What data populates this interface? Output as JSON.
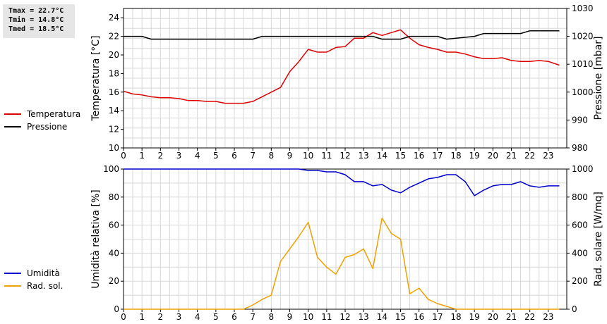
{
  "stats": {
    "tmax": "Tmax = 22.7°C",
    "tmin": "Tmin = 14.8°C",
    "tmed": "Tmed = 18.5°C"
  },
  "legend_top": [
    {
      "label": "Temperatura",
      "color": "#dd0000"
    },
    {
      "label": "Pressione",
      "color": "#000000"
    }
  ],
  "legend_bottom": [
    {
      "label": "Umidità",
      "color": "#0000cc"
    },
    {
      "label": "Rad. sol.",
      "color": "#f0a000"
    }
  ],
  "chart_data": [
    {
      "type": "line",
      "x_ticks": [
        "0",
        "1",
        "2",
        "3",
        "4",
        "5",
        "6",
        "7",
        "8",
        "9",
        "10",
        "11",
        "12",
        "13",
        "14",
        "15",
        "16",
        "17",
        "18",
        "19",
        "20",
        "21",
        "22",
        "23"
      ],
      "xlim": [
        0,
        24
      ],
      "ylabel": "Temperatura [°C]",
      "ylim": [
        10,
        25
      ],
      "y_ticks": [
        10,
        12,
        14,
        16,
        18,
        20,
        22,
        24
      ],
      "y2label": "Pressione [mbar]",
      "y2lim": [
        980,
        1030
      ],
      "y2_ticks": [
        980,
        990,
        1000,
        1010,
        1020,
        1030
      ],
      "grid": true,
      "legend": "left",
      "series": [
        {
          "name": "Temperatura",
          "axis": "left",
          "color": "#dd0000",
          "x": [
            0,
            0.5,
            1,
            1.5,
            2,
            2.5,
            3,
            3.5,
            4,
            4.5,
            5,
            5.5,
            6,
            6.5,
            7,
            7.5,
            8,
            8.5,
            9,
            9.5,
            10,
            10.5,
            11,
            11.5,
            12,
            12.5,
            13,
            13.5,
            14,
            14.5,
            15,
            15.5,
            16,
            16.5,
            17,
            17.5,
            18,
            18.5,
            19,
            19.5,
            20,
            20.5,
            21,
            21.5,
            22,
            22.5,
            23,
            23.6
          ],
          "y": [
            16.1,
            15.8,
            15.7,
            15.5,
            15.4,
            15.4,
            15.3,
            15.1,
            15.1,
            15.0,
            15.0,
            14.8,
            14.8,
            14.8,
            15.0,
            15.5,
            16.0,
            16.5,
            18.2,
            19.3,
            20.6,
            20.3,
            20.3,
            20.8,
            20.9,
            21.8,
            21.8,
            22.4,
            22.1,
            22.4,
            22.7,
            21.8,
            21.1,
            20.8,
            20.6,
            20.3,
            20.3,
            20.1,
            19.8,
            19.6,
            19.6,
            19.7,
            19.4,
            19.3,
            19.3,
            19.4,
            19.3,
            18.9
          ]
        },
        {
          "name": "Pressione",
          "axis": "right",
          "color": "#000000",
          "x": [
            0,
            1,
            1.5,
            7,
            7.5,
            13,
            13.5,
            14,
            15,
            15.5,
            17,
            17.5,
            19,
            19.5,
            21.5,
            22,
            23.6
          ],
          "y": [
            1020,
            1020,
            1019,
            1019,
            1020,
            1020,
            1020,
            1019,
            1019,
            1020,
            1020,
            1019,
            1020,
            1021,
            1021,
            1022,
            1022
          ]
        }
      ]
    },
    {
      "type": "line",
      "x_ticks": [
        "0",
        "1",
        "2",
        "3",
        "4",
        "5",
        "6",
        "7",
        "8",
        "9",
        "10",
        "11",
        "12",
        "13",
        "14",
        "15",
        "16",
        "17",
        "18",
        "19",
        "20",
        "21",
        "22",
        "23"
      ],
      "xlim": [
        0,
        24
      ],
      "ylabel": "Umidità relativa [%]",
      "ylim": [
        0,
        100
      ],
      "y_ticks": [
        0,
        20,
        40,
        60,
        80,
        100
      ],
      "y2label": "Rad. solare [W/mq]",
      "y2lim": [
        0,
        1000
      ],
      "y2_ticks": [
        0,
        200,
        400,
        600,
        800,
        1000
      ],
      "grid": true,
      "legend": "left",
      "series": [
        {
          "name": "Umidità",
          "axis": "left",
          "color": "#0000cc",
          "x": [
            0,
            9.5,
            10,
            10.5,
            11,
            11.5,
            12,
            12.5,
            13,
            13.5,
            14,
            14.5,
            15,
            15.5,
            16,
            16.5,
            17,
            17.5,
            18,
            18.5,
            19,
            19.5,
            20,
            20.5,
            21,
            21.5,
            22,
            22.5,
            23,
            23.6
          ],
          "y": [
            100,
            100,
            99,
            99,
            98,
            98,
            96,
            91,
            91,
            88,
            89,
            85,
            83,
            87,
            90,
            93,
            94,
            96,
            96,
            91,
            81,
            85,
            88,
            89,
            89,
            91,
            88,
            87,
            88,
            88
          ]
        },
        {
          "name": "Rad. sol.",
          "axis": "right",
          "color": "#f0a000",
          "x": [
            0,
            6.5,
            7,
            7.5,
            8,
            8.5,
            9,
            9.5,
            10,
            10.5,
            11,
            11.5,
            12,
            12.5,
            13,
            13.5,
            14,
            14.5,
            15,
            15.5,
            16,
            16.5,
            17,
            17.5,
            18,
            23.6
          ],
          "y": [
            0,
            0,
            30,
            70,
            100,
            340,
            430,
            520,
            620,
            370,
            300,
            250,
            370,
            390,
            430,
            290,
            650,
            540,
            500,
            110,
            150,
            70,
            40,
            20,
            0,
            0
          ]
        }
      ]
    }
  ]
}
